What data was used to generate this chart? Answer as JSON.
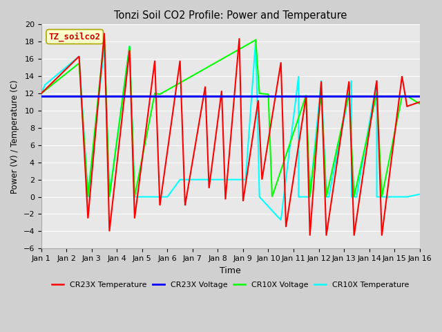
{
  "title": "Tonzi Soil CO2 Profile: Power and Temperature",
  "xlabel": "Time",
  "ylabel": "Power (V) / Temperature (C)",
  "ylim": [
    -6,
    20
  ],
  "xlim": [
    0,
    15
  ],
  "yticks": [
    -6,
    -4,
    -2,
    0,
    2,
    4,
    6,
    8,
    10,
    12,
    14,
    16,
    18,
    20
  ],
  "xtick_labels": [
    "Jan 1",
    "Jan 2",
    "Jan 3",
    "Jan 4",
    "Jan 5",
    "Jan 6",
    "Jan 7",
    "Jan 8",
    "Jan 9",
    "Jan 10",
    "Jan 11",
    "Jan 12",
    "Jan 13",
    "Jan 14",
    "Jan 15",
    "Jan 16"
  ],
  "annotation_text": "TZ_soilco2",
  "annotation_color": "#cc0000",
  "annotation_bg": "#ffffcc",
  "cr23x_voltage_value": 11.7,
  "plot_bg": "#e8e8e8",
  "fig_bg": "#d0d0d0",
  "gridcolor": "#ffffff",
  "cr23x_temp_x": [
    0.0,
    1.5,
    1.85,
    2.5,
    2.7,
    3.5,
    3.7,
    4.5,
    4.7,
    5.5,
    5.7,
    6.5,
    6.65,
    7.15,
    7.3,
    7.85,
    8.0,
    8.6,
    8.75,
    9.5,
    9.7,
    10.5,
    10.65,
    11.1,
    11.3,
    12.2,
    12.4,
    13.3,
    13.5,
    14.3,
    14.5,
    15.0
  ],
  "cr23x_temp_y": [
    12,
    16.3,
    -2.5,
    19.0,
    -4.0,
    17.0,
    -2.5,
    15.8,
    -1.0,
    15.8,
    -1.0,
    12.8,
    1.0,
    12.3,
    -0.3,
    18.4,
    -0.5,
    11.2,
    2.0,
    15.6,
    -3.5,
    11.7,
    -4.5,
    13.4,
    -4.5,
    13.4,
    -4.5,
    13.5,
    -4.5,
    14.0,
    10.5,
    11.0
  ],
  "cr10x_volt_x": [
    0.0,
    1.5,
    1.85,
    2.5,
    2.7,
    3.5,
    3.7,
    4.5,
    4.7,
    8.5,
    8.65,
    9.0,
    9.15,
    10.5,
    10.65,
    11.1,
    11.3,
    12.2,
    12.4,
    13.3,
    13.5,
    14.3,
    14.5,
    15.0
  ],
  "cr10x_volt_y": [
    12,
    15.5,
    0.0,
    18.5,
    0.0,
    17.5,
    0.0,
    12.0,
    11.9,
    18.2,
    12.0,
    11.9,
    0.0,
    11.8,
    0.0,
    12.0,
    0.0,
    12.0,
    0.0,
    12.0,
    0.0,
    11.7,
    11.7,
    10.8
  ],
  "cr10x_temp_x": [
    0.0,
    0.15,
    1.5,
    1.85,
    1.86,
    2.5,
    2.7,
    3.5,
    3.7,
    4.5,
    4.7,
    5.0,
    5.0,
    5.5,
    5.5,
    7.5,
    7.5,
    8.1,
    8.5,
    8.65,
    8.65,
    9.5,
    9.5,
    10.2,
    10.2,
    10.65,
    10.65,
    11.1,
    11.3,
    11.4,
    11.4,
    12.3,
    12.3,
    12.5,
    12.5,
    13.3,
    13.3,
    14.3,
    14.3,
    14.5,
    15.0
  ],
  "cr10x_temp_y": [
    12,
    13.0,
    16.3,
    0.0,
    0.0,
    17.5,
    0.0,
    17.5,
    0.0,
    0.0,
    0.0,
    0.0,
    0.0,
    2.0,
    2.0,
    2.0,
    2.0,
    2.0,
    18.2,
    0.0,
    0.0,
    -2.7,
    -2.7,
    14.0,
    0.0,
    0.0,
    0.0,
    13.5,
    0.0,
    0.0,
    0.0,
    13.5,
    0.0,
    0.0,
    0.0,
    13.5,
    0.0,
    0.0,
    0.0,
    0.0,
    0.3
  ]
}
